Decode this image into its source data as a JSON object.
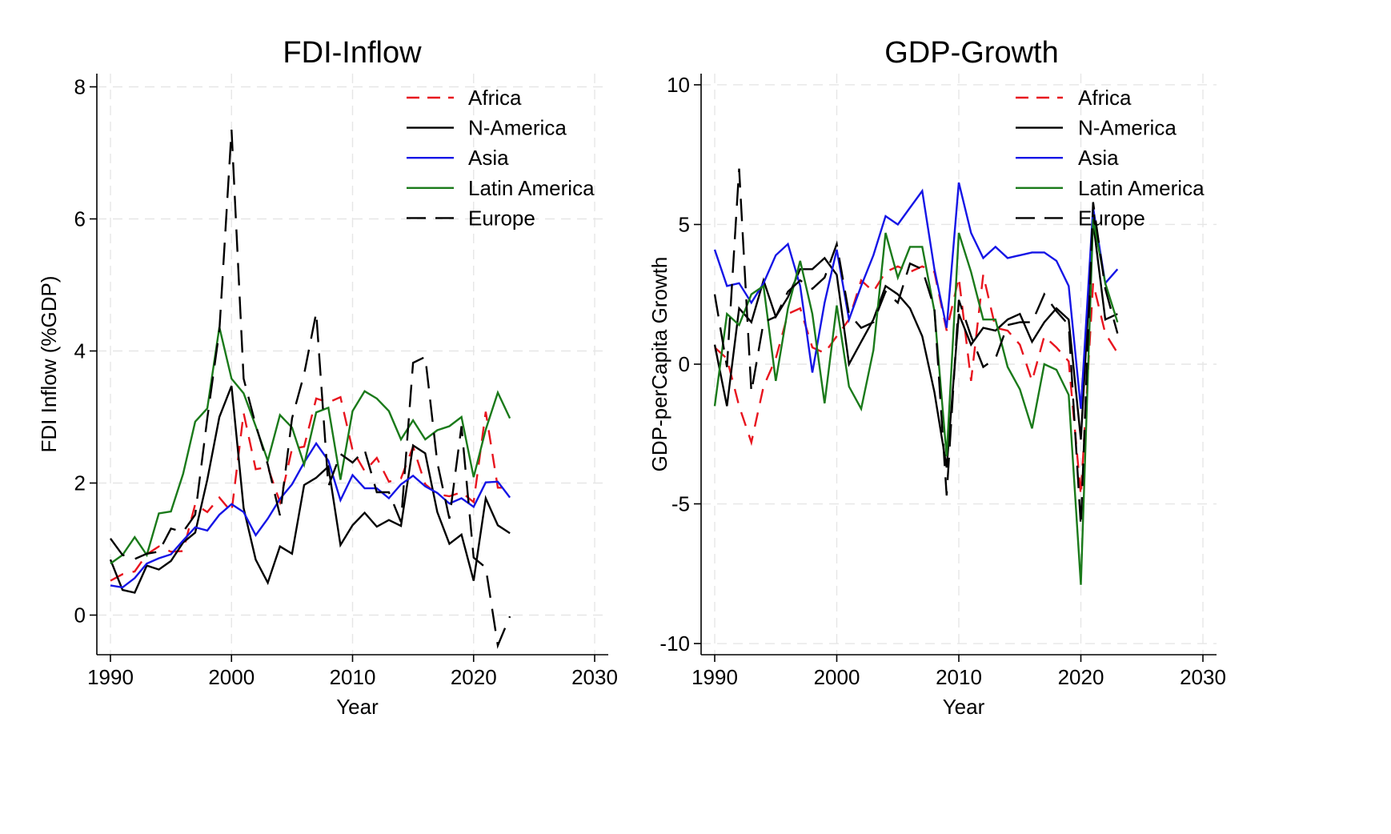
{
  "chart_data": [
    {
      "type": "line",
      "title": "FDI-Inflow",
      "xlabel": "Year",
      "ylabel": "FDI Inflow (%GDP)",
      "xlim": [
        1990,
        2030
      ],
      "ylim": [
        -0.6,
        8.2
      ],
      "xticks": [
        "1990",
        "2000",
        "2010",
        "2020",
        "2030"
      ],
      "yticks": [
        "0",
        "2",
        "4",
        "6",
        "8"
      ],
      "grid": true,
      "legend_position": "top-right",
      "x": [
        1990,
        1991,
        1992,
        1993,
        1994,
        1995,
        1996,
        1997,
        1998,
        1999,
        2000,
        2001,
        2002,
        2003,
        2004,
        2005,
        2006,
        2007,
        2008,
        2009,
        2010,
        2011,
        2012,
        2013,
        2014,
        2015,
        2016,
        2017,
        2018,
        2019,
        2020,
        2021,
        2022,
        2023
      ],
      "series": [
        {
          "name": "Africa",
          "color": "#e8141e",
          "dash": "dash",
          "values": [
            0.52,
            0.62,
            0.66,
            0.92,
            1.04,
            0.96,
            0.97,
            1.68,
            1.56,
            1.78,
            1.56,
            3.06,
            2.21,
            2.24,
            1.71,
            2.52,
            2.55,
            3.28,
            3.22,
            3.3,
            2.5,
            2.18,
            2.38,
            2.02,
            2.07,
            2.55,
            1.98,
            1.83,
            1.8,
            1.86,
            1.71,
            3.08,
            1.93,
            1.93
          ]
        },
        {
          "name": "N-America",
          "color": "#000000",
          "dash": "solid",
          "values": [
            0.84,
            0.38,
            0.34,
            0.75,
            0.69,
            0.82,
            1.1,
            1.25,
            2.05,
            3.0,
            3.47,
            1.62,
            0.84,
            0.49,
            1.04,
            0.93,
            1.97,
            2.08,
            2.25,
            1.06,
            1.36,
            1.55,
            1.34,
            1.44,
            1.35,
            2.57,
            2.45,
            1.56,
            1.08,
            1.22,
            0.52,
            1.77,
            1.36,
            1.24
          ]
        },
        {
          "name": "Asia",
          "color": "#1515e6",
          "dash": "solid",
          "values": [
            0.45,
            0.42,
            0.56,
            0.78,
            0.86,
            0.92,
            1.13,
            1.33,
            1.28,
            1.52,
            1.68,
            1.56,
            1.21,
            1.46,
            1.76,
            1.98,
            2.31,
            2.6,
            2.34,
            1.74,
            2.12,
            1.92,
            1.92,
            1.77,
            1.98,
            2.11,
            1.95,
            1.85,
            1.69,
            1.77,
            1.64,
            2.01,
            2.02,
            1.78
          ]
        },
        {
          "name": "Latin America",
          "color": "#1a7a1a",
          "dash": "solid",
          "values": [
            0.78,
            0.91,
            1.18,
            0.91,
            1.54,
            1.57,
            2.14,
            2.93,
            3.13,
            4.36,
            3.58,
            3.36,
            2.86,
            2.34,
            3.03,
            2.84,
            2.28,
            3.07,
            3.14,
            2.05,
            3.09,
            3.39,
            3.28,
            3.09,
            2.66,
            2.95,
            2.66,
            2.8,
            2.86,
            3.0,
            2.09,
            2.81,
            3.37,
            2.98
          ]
        },
        {
          "name": "Europe",
          "color": "#000000",
          "dash": "longdash",
          "values": [
            1.16,
            0.91,
            0.85,
            0.93,
            0.96,
            1.31,
            1.26,
            1.52,
            2.98,
            4.31,
            7.35,
            3.58,
            2.88,
            2.28,
            1.51,
            2.98,
            3.65,
            4.58,
            1.95,
            2.44,
            2.31,
            2.5,
            1.86,
            1.86,
            1.41,
            3.82,
            3.91,
            2.31,
            1.46,
            2.86,
            0.87,
            0.72,
            -0.46,
            -0.02
          ]
        }
      ]
    },
    {
      "type": "line",
      "title": "GDP-Growth",
      "xlabel": "Year",
      "ylabel": "GDP-perCapita Growth",
      "xlim": [
        1990,
        2030
      ],
      "ylim": [
        -10.4,
        10.4
      ],
      "xticks": [
        "1990",
        "2000",
        "2010",
        "2020",
        "2030"
      ],
      "yticks": [
        "-10",
        "-5",
        "0",
        "5",
        "10"
      ],
      "grid": true,
      "legend_position": "top-right",
      "x": [
        1990,
        1991,
        1992,
        1993,
        1994,
        1995,
        1996,
        1997,
        1998,
        1999,
        2000,
        2001,
        2002,
        2003,
        2004,
        2005,
        2006,
        2007,
        2008,
        2009,
        2010,
        2011,
        2012,
        2013,
        2014,
        2015,
        2016,
        2017,
        2018,
        2019,
        2020,
        2021,
        2022,
        2023
      ],
      "series": [
        {
          "name": "Africa",
          "color": "#e8141e",
          "dash": "dash",
          "values": [
            0.6,
            0.2,
            -1.5,
            -2.8,
            -0.8,
            0.2,
            1.8,
            2.0,
            0.6,
            0.4,
            1.0,
            1.6,
            3.0,
            2.6,
            3.3,
            3.5,
            3.3,
            3.5,
            3.3,
            1.2,
            3.1,
            -0.6,
            3.2,
            1.3,
            1.2,
            0.7,
            -0.6,
            1.0,
            0.6,
            0.1,
            -4.7,
            2.9,
            1.1,
            0.4
          ]
        },
        {
          "name": "N-America",
          "color": "#000000",
          "dash": "solid",
          "values": [
            0.7,
            -1.5,
            2.0,
            1.5,
            3.0,
            1.7,
            2.4,
            3.4,
            3.4,
            3.8,
            3.2,
            0.0,
            0.8,
            1.6,
            2.8,
            2.5,
            2.0,
            1.0,
            -1.0,
            -3.7,
            1.8,
            0.7,
            1.3,
            1.2,
            1.6,
            1.8,
            0.8,
            1.5,
            2.0,
            1.6,
            -2.7,
            5.1,
            1.6,
            1.8
          ]
        },
        {
          "name": "Asia",
          "color": "#1515e6",
          "dash": "solid",
          "values": [
            4.1,
            2.8,
            2.9,
            2.2,
            2.9,
            3.9,
            4.3,
            2.8,
            -0.3,
            2.2,
            4.1,
            1.6,
            2.8,
            3.9,
            5.3,
            5.0,
            5.6,
            6.2,
            3.4,
            1.3,
            6.5,
            4.7,
            3.8,
            4.2,
            3.8,
            3.9,
            4.0,
            4.0,
            3.7,
            2.8,
            -1.6,
            5.6,
            2.9,
            3.4
          ]
        },
        {
          "name": "Latin America",
          "color": "#1a7a1a",
          "dash": "solid",
          "values": [
            -1.5,
            1.8,
            1.4,
            2.5,
            2.8,
            -0.6,
            2.0,
            3.7,
            1.8,
            -1.4,
            2.1,
            -0.8,
            -1.6,
            0.5,
            4.7,
            3.1,
            4.2,
            4.2,
            1.9,
            -3.3,
            4.7,
            3.3,
            1.6,
            1.6,
            -0.1,
            -0.9,
            -2.3,
            0.0,
            -0.2,
            -1.1,
            -7.9,
            5.2,
            2.9,
            1.5
          ]
        },
        {
          "name": "Europe",
          "color": "#000000",
          "dash": "longdash",
          "values": [
            2.5,
            -0.1,
            7.0,
            -1.0,
            1.5,
            1.7,
            2.6,
            3.0,
            2.7,
            3.1,
            4.3,
            1.8,
            1.3,
            1.5,
            2.6,
            2.2,
            3.6,
            3.4,
            2.0,
            -4.7,
            2.3,
            1.0,
            -0.1,
            0.2,
            1.4,
            1.5,
            1.5,
            2.5,
            1.9,
            1.4,
            -5.8,
            5.8,
            2.7,
            1.1
          ]
        }
      ]
    }
  ]
}
